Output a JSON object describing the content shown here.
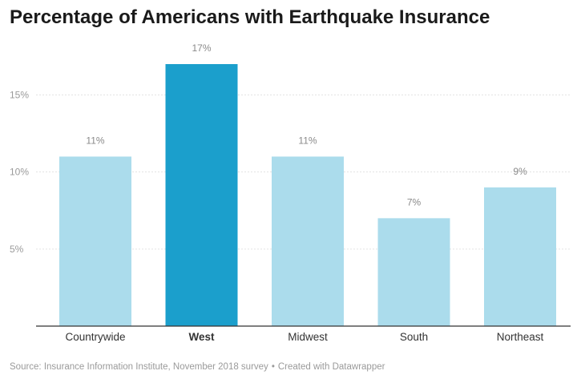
{
  "title": "Percentage of Americans with Earthquake Insurance",
  "footer": {
    "source": "Source: Insurance Information Institute, November 2018 survey",
    "separator": "•",
    "credit": "Created with Datawrapper"
  },
  "colors": {
    "highlight": "#1b9fcc",
    "default": "#abdcec",
    "grid": "#e3e3e3",
    "axis": "#333333",
    "tick_text": "#9a9a9a",
    "label_text": "#8a8a8a",
    "category_text": "#333333"
  },
  "chart_data": {
    "type": "bar",
    "categories": [
      "Countrywide",
      "West",
      "Midwest",
      "South",
      "Northeast"
    ],
    "values": [
      11,
      17,
      11,
      7,
      9
    ],
    "value_labels": [
      "11%",
      "17%",
      "11%",
      "7%",
      "9%"
    ],
    "highlighted_category": "West",
    "yticks": [
      5,
      10,
      15
    ],
    "ytick_labels": [
      "5%",
      "10%",
      "15%"
    ],
    "ylim": [
      0,
      17
    ],
    "grid": true,
    "title": "Percentage of Americans with Earthquake Insurance",
    "xlabel": "",
    "ylabel": ""
  }
}
